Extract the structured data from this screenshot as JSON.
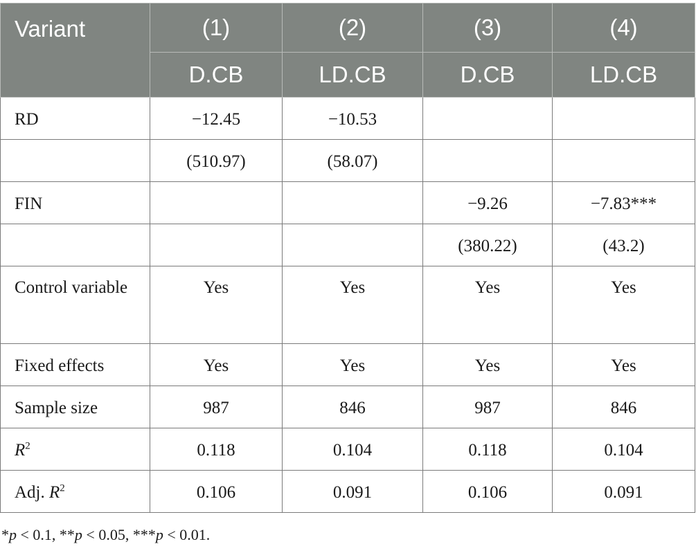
{
  "header": {
    "variant_label": "Variant",
    "columns": [
      {
        "number": "(1)",
        "dep": "D.CB"
      },
      {
        "number": "(2)",
        "dep": "LD.CB"
      },
      {
        "number": "(3)",
        "dep": "D.CB"
      },
      {
        "number": "(4)",
        "dep": "LD.CB"
      }
    ]
  },
  "rows": {
    "rd": {
      "label": "RD",
      "values": [
        "−12.45",
        "−10.53",
        "",
        ""
      ]
    },
    "rd_se": {
      "label": "",
      "values": [
        "(510.97)",
        "(58.07)",
        "",
        ""
      ]
    },
    "fin": {
      "label": "FIN",
      "values": [
        "",
        "",
        "−9.26",
        "−7.83***"
      ]
    },
    "fin_se": {
      "label": "",
      "values": [
        "",
        "",
        "(380.22)",
        "(43.2)"
      ]
    },
    "control": {
      "label": "Control variable",
      "values": [
        "Yes",
        "Yes",
        "Yes",
        "Yes"
      ]
    },
    "fixed": {
      "label": "Fixed effects",
      "values": [
        "Yes",
        "Yes",
        "Yes",
        "Yes"
      ]
    },
    "sample": {
      "label": "Sample size",
      "values": [
        "987",
        "846",
        "987",
        "846"
      ]
    },
    "r2": {
      "label_var": "R",
      "label_sup": "2",
      "values": [
        "0.118",
        "0.104",
        "0.118",
        "0.104"
      ]
    },
    "adj_r2": {
      "label_prefix": "Adj. ",
      "label_var": "R",
      "label_sup": "2",
      "values": [
        "0.106",
        "0.091",
        "0.106",
        "0.091"
      ]
    }
  },
  "footnote": {
    "s1": "*",
    "p1": "p",
    "t1": " < 0.1, **",
    "p2": "p",
    "t2": " < 0.05, ***",
    "p3": "p",
    "t3": " < 0.01."
  }
}
